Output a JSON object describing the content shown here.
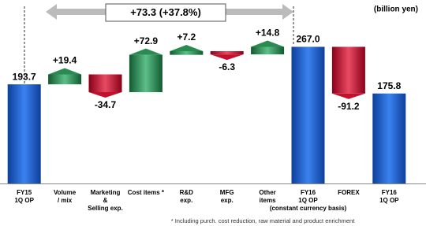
{
  "chart_data": {
    "type": "waterfall",
    "unit_label": "(billion yen)",
    "annotation": "+73.3 (+37.8%)",
    "footnote": "* Including purch. cost reduction, raw material and product enrichment",
    "categories": [
      [
        "FY15",
        "1Q OP"
      ],
      [
        "Volume",
        "/ mix"
      ],
      [
        "Marketing",
        "&",
        "Selling exp."
      ],
      [
        "Cost items *"
      ],
      [
        "R&D",
        "exp."
      ],
      [
        "MFG",
        "exp."
      ],
      [
        "Other",
        "items"
      ],
      [
        "FY16",
        "1Q OP",
        "(constant currency basis)"
      ],
      [
        "FOREX"
      ],
      [
        "FY16",
        "1Q OP"
      ]
    ],
    "measure": [
      "absolute",
      "relative",
      "relative",
      "relative",
      "relative",
      "relative",
      "relative",
      "absolute",
      "relative",
      "absolute"
    ],
    "values": [
      193.7,
      19.4,
      -34.7,
      72.9,
      7.2,
      -6.3,
      14.8,
      267.0,
      -91.2,
      175.8
    ],
    "value_labels": [
      "193.7",
      "+19.4",
      "-34.7",
      "+72.9",
      "+7.2",
      "-6.3",
      "+14.8",
      "267.0",
      "-91.2",
      "175.8"
    ],
    "totals_color": "#1a5fd0",
    "increasing_color": "#2a8a52",
    "decreasing_color": "#c4102c",
    "ylim": [
      0,
      300
    ]
  }
}
